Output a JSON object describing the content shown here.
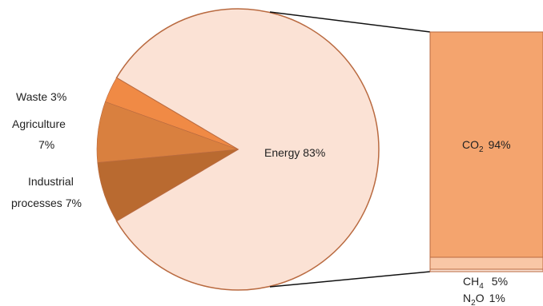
{
  "chart_data": {
    "type": "pie",
    "title": "",
    "pie": {
      "slices": [
        {
          "label": "Energy",
          "value_text": "83%",
          "value": 83,
          "color": "#fbe2d5"
        },
        {
          "label": "Waste",
          "value_text": "3%",
          "value": 3,
          "color": "#f08a45"
        },
        {
          "label": "Agriculture",
          "value_text": "7%",
          "value": 7,
          "color": "#d9803f"
        },
        {
          "label": "Industrial processes",
          "value_text": "7%",
          "value": 7,
          "color": "#b96a30"
        }
      ],
      "edge_color": "#b96a40"
    },
    "breakdown": {
      "of": "Energy",
      "type": "stacked-bar",
      "segments": [
        {
          "gas": "CO",
          "sub": "2",
          "value_text": "94%",
          "value": 94,
          "color": "#f4a46e"
        },
        {
          "gas": "CH",
          "sub": "4",
          "value_text": "5%",
          "value": 5,
          "color": "#f9c7a6"
        },
        {
          "gas": "N",
          "sub": "2",
          "gas2": "O",
          "value_text": "1%",
          "value": 1,
          "color": "#fbe2d5"
        }
      ]
    },
    "labels": {
      "energy": "Energy 83%",
      "waste": "Waste 3%",
      "agriculture_1": "Agriculture",
      "agriculture_2": "7%",
      "industrial_1": "Industrial",
      "industrial_2": "processes 7%"
    }
  }
}
